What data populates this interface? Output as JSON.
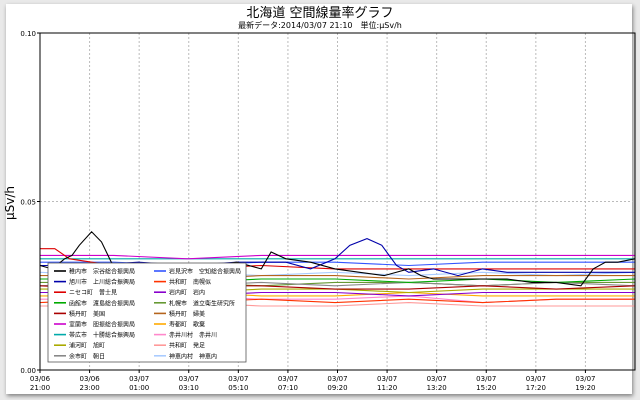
{
  "chart_data": {
    "type": "line",
    "title": "北海道 空間線量率グラフ",
    "subtitle": "最新データ:2014/03/07 21:10　単位:μSv/h",
    "ylabel": "μSv/h",
    "xlabel": "",
    "ylim": [
      0.0,
      0.1
    ],
    "yticks": [
      "0.00",
      "0.05",
      "0.10"
    ],
    "grid": true,
    "legend_position": "lower-left",
    "x_ticks": [
      {
        "date": "03/06",
        "time": "21:00"
      },
      {
        "date": "03/06",
        "time": "23:00"
      },
      {
        "date": "03/07",
        "time": "01:00"
      },
      {
        "date": "03/07",
        "time": "03:10"
      },
      {
        "date": "03/07",
        "time": "05:10"
      },
      {
        "date": "03/07",
        "time": "07:10"
      },
      {
        "date": "03/07",
        "time": "09:20"
      },
      {
        "date": "03/07",
        "time": "11:20"
      },
      {
        "date": "03/07",
        "time": "13:20"
      },
      {
        "date": "03/07",
        "time": "15:20"
      },
      {
        "date": "03/07",
        "time": "17:20"
      },
      {
        "date": "03/07",
        "time": "19:20"
      }
    ],
    "x_range_hours": [
      0,
      24.2
    ],
    "series": [
      {
        "name": "稚内市　宗谷総合振興局",
        "color": "#000000",
        "points": [
          [
            0,
            0.031
          ],
          [
            0.5,
            0.03
          ],
          [
            1,
            0.033
          ],
          [
            1.3,
            0.034
          ],
          [
            1.6,
            0.037
          ],
          [
            2.1,
            0.041
          ],
          [
            2.5,
            0.038
          ],
          [
            2.9,
            0.032
          ],
          [
            3.3,
            0.029
          ],
          [
            4,
            0.029
          ],
          [
            5,
            0.03
          ],
          [
            6,
            0.031
          ],
          [
            7,
            0.031
          ],
          [
            8,
            0.032
          ],
          [
            9,
            0.03
          ],
          [
            9.4,
            0.035
          ],
          [
            10,
            0.033
          ],
          [
            11,
            0.032
          ],
          [
            12,
            0.03
          ],
          [
            13,
            0.029
          ],
          [
            14,
            0.028
          ],
          [
            15,
            0.03
          ],
          [
            15.5,
            0.028
          ],
          [
            16,
            0.027
          ],
          [
            17,
            0.027
          ],
          [
            18,
            0.027
          ],
          [
            19,
            0.027
          ],
          [
            20,
            0.026
          ],
          [
            21,
            0.026
          ],
          [
            22,
            0.025
          ],
          [
            22.5,
            0.03
          ],
          [
            23,
            0.032
          ],
          [
            23.5,
            0.032
          ],
          [
            24.2,
            0.033
          ]
        ]
      },
      {
        "name": "旭川市　上川総合振興局",
        "color": "#0000aa",
        "points": [
          [
            0,
            0.031
          ],
          [
            2,
            0.031
          ],
          [
            4,
            0.032
          ],
          [
            6,
            0.031
          ],
          [
            8,
            0.032
          ],
          [
            10,
            0.032
          ],
          [
            11,
            0.03
          ],
          [
            12,
            0.033
          ],
          [
            12.6,
            0.037
          ],
          [
            13.3,
            0.039
          ],
          [
            13.9,
            0.037
          ],
          [
            14.5,
            0.031
          ],
          [
            15,
            0.029
          ],
          [
            16,
            0.03
          ],
          [
            17,
            0.028
          ],
          [
            18,
            0.03
          ],
          [
            19,
            0.029
          ],
          [
            20,
            0.029
          ],
          [
            22,
            0.029
          ],
          [
            24.2,
            0.029
          ]
        ]
      },
      {
        "name": "ニセコ町　曽士見",
        "color": "#dd0000",
        "points": [
          [
            0,
            0.036
          ],
          [
            0.6,
            0.036
          ],
          [
            1.2,
            0.033
          ],
          [
            3,
            0.031
          ],
          [
            6,
            0.03
          ],
          [
            9,
            0.031
          ],
          [
            12,
            0.03
          ],
          [
            15,
            0.03
          ],
          [
            18,
            0.03
          ],
          [
            21,
            0.03
          ],
          [
            24.2,
            0.03
          ]
        ]
      },
      {
        "name": "函館市　渡島総合振興局",
        "color": "#00aa00",
        "points": [
          [
            0,
            0.027
          ],
          [
            3,
            0.027
          ],
          [
            6,
            0.026
          ],
          [
            9,
            0.027
          ],
          [
            12,
            0.027
          ],
          [
            15,
            0.026
          ],
          [
            18,
            0.027
          ],
          [
            21,
            0.026
          ],
          [
            24.2,
            0.027
          ]
        ]
      },
      {
        "name": "積丹町　美国",
        "color": "#aa0000",
        "points": [
          [
            0,
            0.025
          ],
          [
            3,
            0.024
          ],
          [
            6,
            0.025
          ],
          [
            9,
            0.025
          ],
          [
            12,
            0.024
          ],
          [
            15,
            0.024
          ],
          [
            18,
            0.025
          ],
          [
            21,
            0.024
          ],
          [
            24.2,
            0.025
          ]
        ]
      },
      {
        "name": "室蘭市　胆振総合振興局",
        "color": "#cc00cc",
        "points": [
          [
            0,
            0.034
          ],
          [
            3,
            0.034
          ],
          [
            6,
            0.033
          ],
          [
            9,
            0.034
          ],
          [
            12,
            0.034
          ],
          [
            15,
            0.034
          ],
          [
            18,
            0.034
          ],
          [
            21,
            0.034
          ],
          [
            24.2,
            0.034
          ]
        ]
      },
      {
        "name": "帯広市　十勝総合振興局",
        "color": "#00aaaa",
        "points": [
          [
            0,
            0.033
          ],
          [
            3,
            0.033
          ],
          [
            6,
            0.033
          ],
          [
            9,
            0.033
          ],
          [
            12,
            0.033
          ],
          [
            15,
            0.033
          ],
          [
            18,
            0.033
          ],
          [
            21,
            0.033
          ],
          [
            24.2,
            0.033
          ]
        ]
      },
      {
        "name": "浦河町　旭町",
        "color": "#aaaa00",
        "points": [
          [
            0,
            0.024
          ],
          [
            3,
            0.024
          ],
          [
            6,
            0.023
          ],
          [
            9,
            0.024
          ],
          [
            12,
            0.024
          ],
          [
            15,
            0.023
          ],
          [
            18,
            0.024
          ],
          [
            21,
            0.024
          ],
          [
            24.2,
            0.024
          ]
        ]
      },
      {
        "name": "余市町　朝日",
        "color": "#888888",
        "points": [
          [
            0,
            0.025
          ],
          [
            3,
            0.026
          ],
          [
            6,
            0.025
          ],
          [
            9,
            0.026
          ],
          [
            12,
            0.025
          ],
          [
            15,
            0.026
          ],
          [
            18,
            0.025
          ],
          [
            21,
            0.026
          ],
          [
            24.2,
            0.025
          ]
        ]
      },
      {
        "name": "岩見沢市　空知総合振興局",
        "color": "#3355ff",
        "points": [
          [
            0,
            0.032
          ],
          [
            3,
            0.032
          ],
          [
            6,
            0.031
          ],
          [
            9,
            0.032
          ],
          [
            12,
            0.032
          ],
          [
            15,
            0.031
          ],
          [
            18,
            0.032
          ],
          [
            21,
            0.032
          ],
          [
            24.2,
            0.032
          ]
        ]
      },
      {
        "name": "共和町　南幌似",
        "color": "#ff3300",
        "points": [
          [
            0,
            0.02
          ],
          [
            3,
            0.021
          ],
          [
            6,
            0.02
          ],
          [
            9,
            0.021
          ],
          [
            12,
            0.02
          ],
          [
            15,
            0.021
          ],
          [
            18,
            0.02
          ],
          [
            21,
            0.021
          ],
          [
            24.2,
            0.021
          ]
        ]
      },
      {
        "name": "岩内町　岩内",
        "color": "#8800cc",
        "points": [
          [
            0,
            0.023
          ],
          [
            3,
            0.023
          ],
          [
            6,
            0.022
          ],
          [
            9,
            0.023
          ],
          [
            12,
            0.023
          ],
          [
            15,
            0.022
          ],
          [
            18,
            0.023
          ],
          [
            21,
            0.023
          ],
          [
            24.2,
            0.023
          ]
        ]
      },
      {
        "name": "札幌市　道立衛生研究所",
        "color": "#669933",
        "points": [
          [
            0,
            0.026
          ],
          [
            3,
            0.026
          ],
          [
            6,
            0.026
          ],
          [
            9,
            0.025
          ],
          [
            12,
            0.026
          ],
          [
            15,
            0.026
          ],
          [
            18,
            0.025
          ],
          [
            21,
            0.026
          ],
          [
            24.2,
            0.026
          ]
        ]
      },
      {
        "name": "積丹町　婦美",
        "color": "#b5651d",
        "points": [
          [
            0,
            0.028
          ],
          [
            3,
            0.028
          ],
          [
            6,
            0.027
          ],
          [
            9,
            0.028
          ],
          [
            12,
            0.028
          ],
          [
            15,
            0.027
          ],
          [
            18,
            0.028
          ],
          [
            21,
            0.028
          ],
          [
            24.2,
            0.028
          ]
        ]
      },
      {
        "name": "寿都町　歌棄",
        "color": "#ffaa00",
        "points": [
          [
            0,
            0.022
          ],
          [
            3,
            0.022
          ],
          [
            6,
            0.023
          ],
          [
            9,
            0.022
          ],
          [
            12,
            0.022
          ],
          [
            15,
            0.023
          ],
          [
            18,
            0.022
          ],
          [
            21,
            0.022
          ],
          [
            24.2,
            0.022
          ]
        ]
      },
      {
        "name": "赤井川村　赤井川",
        "color": "#ff88cc",
        "points": [
          [
            0,
            0.021
          ],
          [
            3,
            0.021
          ],
          [
            6,
            0.022
          ],
          [
            9,
            0.021
          ],
          [
            12,
            0.021
          ],
          [
            15,
            0.022
          ],
          [
            18,
            0.02
          ],
          [
            21,
            0.021
          ],
          [
            24.2,
            0.021
          ]
        ]
      },
      {
        "name": "共和町　発足",
        "color": "#ff9999",
        "points": [
          [
            0,
            0.019
          ],
          [
            3,
            0.019
          ],
          [
            6,
            0.02
          ],
          [
            9,
            0.019
          ],
          [
            12,
            0.019
          ],
          [
            15,
            0.02
          ],
          [
            18,
            0.019
          ],
          [
            21,
            0.019
          ],
          [
            24.2,
            0.019
          ]
        ]
      },
      {
        "name": "神恵内村　神恵内",
        "color": "#aaccff",
        "points": [
          [
            0,
            0.029
          ],
          [
            3,
            0.028
          ],
          [
            6,
            0.029
          ],
          [
            9,
            0.028
          ],
          [
            12,
            0.029
          ],
          [
            15,
            0.028
          ],
          [
            18,
            0.029
          ],
          [
            21,
            0.028
          ],
          [
            24.2,
            0.029
          ]
        ]
      }
    ]
  }
}
